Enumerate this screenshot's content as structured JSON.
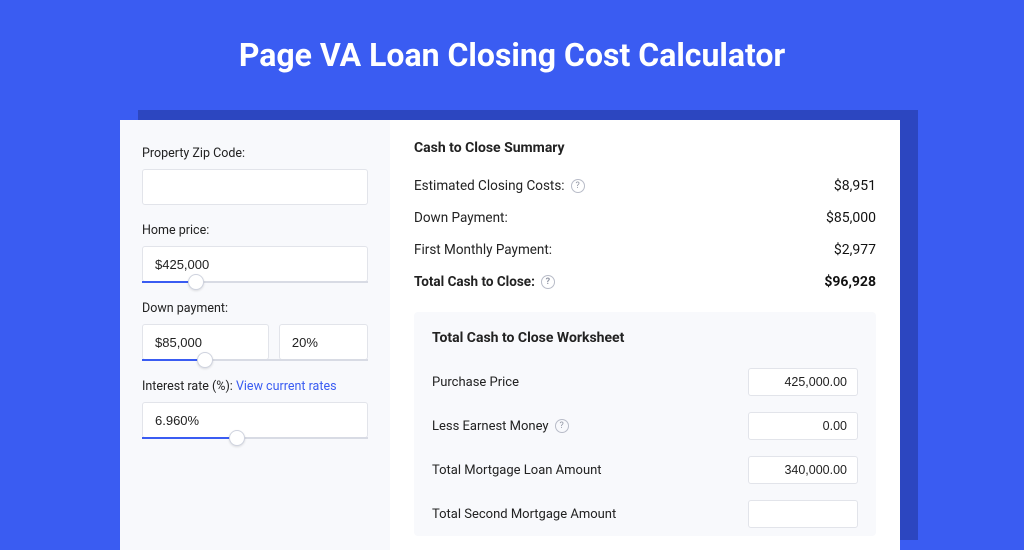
{
  "colors": {
    "page_bg": "#3a5cf2",
    "shadow": "#2c46c0",
    "card_bg": "#ffffff",
    "panel_bg": "#f8f9fc",
    "border": "#e2e4ea",
    "text": "#222222",
    "link": "#3a5cf2",
    "slider_fill": "#3a5cf2",
    "slider_track": "#d8dbe4"
  },
  "title": "Page VA Loan Closing Cost Calculator",
  "left": {
    "zip_label": "Property Zip Code:",
    "zip_value": "",
    "home_price_label": "Home price:",
    "home_price_value": "$425,000",
    "home_price_slider": {
      "fill_pct": 24,
      "thumb_pct": 24
    },
    "down_payment_label": "Down payment:",
    "down_payment_value": "$85,000",
    "down_payment_pct_value": "20%",
    "down_payment_slider": {
      "fill_pct": 28,
      "thumb_pct": 28
    },
    "interest_label_prefix": "Interest rate (%): ",
    "interest_link_text": "View current rates",
    "interest_value": "6.960%",
    "interest_slider": {
      "fill_pct": 42,
      "thumb_pct": 42
    }
  },
  "summary": {
    "title": "Cash to Close Summary",
    "rows": [
      {
        "label": "Estimated Closing Costs:",
        "help": true,
        "value": "$8,951",
        "bold": false
      },
      {
        "label": "Down Payment:",
        "help": false,
        "value": "$85,000",
        "bold": false
      },
      {
        "label": "First Monthly Payment:",
        "help": false,
        "value": "$2,977",
        "bold": false
      },
      {
        "label": "Total Cash to Close:",
        "help": true,
        "value": "$96,928",
        "bold": true
      }
    ]
  },
  "worksheet": {
    "title": "Total Cash to Close Worksheet",
    "rows": [
      {
        "label": "Purchase Price",
        "help": false,
        "value": "425,000.00"
      },
      {
        "label": "Less Earnest Money",
        "help": true,
        "value": "0.00"
      },
      {
        "label": "Total Mortgage Loan Amount",
        "help": false,
        "value": "340,000.00"
      },
      {
        "label": "Total Second Mortgage Amount",
        "help": false,
        "value": ""
      }
    ]
  }
}
